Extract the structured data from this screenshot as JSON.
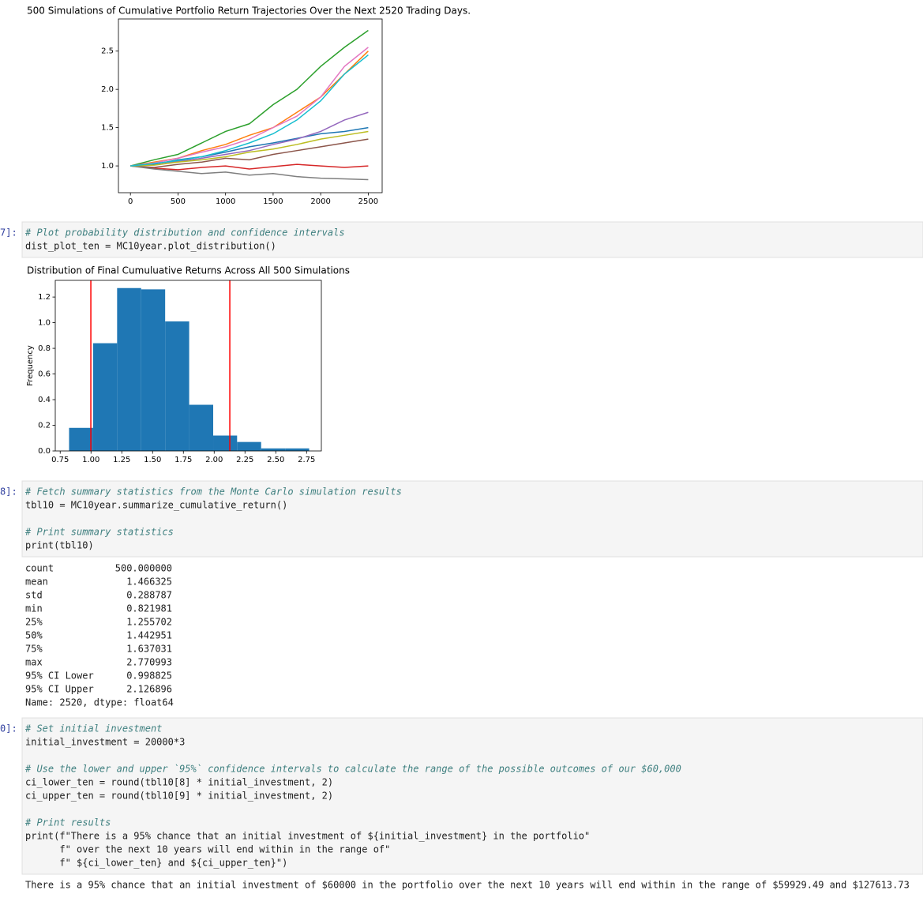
{
  "chart_data": [
    {
      "type": "line",
      "title": "500 Simulations of Cumulative Portfolio Return Trajectories Over the Next 2520 Trading Days.",
      "x": [
        0,
        250,
        500,
        750,
        1000,
        1250,
        1500,
        1750,
        2000,
        2250,
        2500
      ],
      "series": [
        {
          "color": "#1f77b4",
          "values": [
            1.0,
            1.02,
            1.08,
            1.12,
            1.18,
            1.25,
            1.3,
            1.36,
            1.42,
            1.45,
            1.5
          ]
        },
        {
          "color": "#ff7f0e",
          "values": [
            1.0,
            1.05,
            1.1,
            1.2,
            1.28,
            1.4,
            1.5,
            1.7,
            1.9,
            2.2,
            2.5
          ]
        },
        {
          "color": "#2ca02c",
          "values": [
            1.0,
            1.08,
            1.15,
            1.3,
            1.45,
            1.55,
            1.8,
            2.0,
            2.3,
            2.55,
            2.77
          ]
        },
        {
          "color": "#d62728",
          "values": [
            1.0,
            0.97,
            0.95,
            0.98,
            1.0,
            0.96,
            0.99,
            1.02,
            1.0,
            0.98,
            1.0
          ]
        },
        {
          "color": "#9467bd",
          "values": [
            1.0,
            1.03,
            1.06,
            1.1,
            1.15,
            1.2,
            1.28,
            1.35,
            1.45,
            1.6,
            1.7
          ]
        },
        {
          "color": "#8c564b",
          "values": [
            1.0,
            0.98,
            1.02,
            1.05,
            1.1,
            1.08,
            1.15,
            1.2,
            1.25,
            1.3,
            1.35
          ]
        },
        {
          "color": "#e377c2",
          "values": [
            1.0,
            1.04,
            1.1,
            1.18,
            1.25,
            1.35,
            1.5,
            1.65,
            1.9,
            2.3,
            2.55
          ]
        },
        {
          "color": "#7f7f7f",
          "values": [
            1.0,
            0.96,
            0.93,
            0.9,
            0.92,
            0.88,
            0.9,
            0.86,
            0.84,
            0.83,
            0.82
          ]
        },
        {
          "color": "#bcbd22",
          "values": [
            1.0,
            1.01,
            1.05,
            1.08,
            1.12,
            1.18,
            1.22,
            1.28,
            1.35,
            1.4,
            1.45
          ]
        },
        {
          "color": "#17becf",
          "values": [
            1.0,
            1.03,
            1.07,
            1.12,
            1.2,
            1.3,
            1.42,
            1.6,
            1.85,
            2.2,
            2.45
          ]
        }
      ],
      "xlim": [
        -126,
        2646
      ],
      "xticks": [
        0,
        500,
        1000,
        1500,
        2000,
        2500
      ],
      "ylim": [
        0.65,
        2.92
      ],
      "yticks": [
        {
          "value": 1,
          "label": "1.0"
        },
        1.5,
        {
          "value": 2,
          "label": "2.0"
        },
        2.5
      ],
      "grid": false
    },
    {
      "type": "histogram",
      "title": "Distribution of Final Cumuluative Returns Across All 500 Simulations",
      "y_label": "Frequency",
      "bins": [
        0.822,
        1.017,
        1.212,
        1.407,
        1.602,
        1.797,
        1.992,
        2.186,
        2.381,
        2.576,
        2.771
      ],
      "values": [
        0.18,
        0.84,
        1.27,
        1.26,
        1.01,
        0.36,
        0.12,
        0.07,
        0.02,
        0.02
      ],
      "color": "#1f77b4",
      "vlines": [
        0.998825,
        2.126896
      ],
      "vline_color": "#ff0000",
      "xlim": [
        0.71,
        2.87
      ],
      "xticks": [
        {
          "value": 0.75,
          "label": "0.75"
        },
        {
          "value": 1,
          "label": "1.00"
        },
        {
          "value": 1.25,
          "label": "1.25"
        },
        {
          "value": 1.5,
          "label": "1.50"
        },
        {
          "value": 1.75,
          "label": "1.75"
        },
        {
          "value": 2,
          "label": "2.00"
        },
        {
          "value": 2.25,
          "label": "2.25"
        },
        {
          "value": 2.5,
          "label": "2.50"
        },
        {
          "value": 2.75,
          "label": "2.75"
        }
      ],
      "ylim": [
        0,
        1.33
      ],
      "yticks": [
        {
          "value": 0,
          "label": "0.0"
        },
        0.2,
        0.4,
        0.6,
        0.8,
        {
          "value": 1,
          "label": "1.0"
        },
        1.2
      ],
      "grid": false
    }
  ],
  "cells": [
    {
      "prompt": "7]:",
      "blocks": [
        [
          "# Plot probability distribution and confidence intervals",
          "dist_plot_ten = MC10year.plot_distribution()"
        ]
      ]
    },
    {
      "prompt": "8]:",
      "blocks": [
        [
          "# Fetch summary statistics from the Monte Carlo simulation results",
          "tbl10 = MC10year.summarize_cumulative_return()"
        ],
        [
          "# Print summary statistics",
          "print(tbl10)"
        ]
      ]
    },
    {
      "prompt": "0]:",
      "blocks": [
        [
          "# Set initial investment",
          "initial_investment = 20000*3"
        ],
        [
          "# Use the lower and upper `95%` confidence intervals to calculate the range of the possible outcomes of our $60,000",
          "ci_lower_ten = round(tbl10[8] * initial_investment, 2)",
          "ci_upper_ten = round(tbl10[9] * initial_investment, 2)"
        ],
        [
          "# Print results",
          "print(f\"There is a 95% chance that an initial investment of ${initial_investment} in the portfolio\"",
          "      f\" over the next 10 years will end within in the range of\"",
          "      f\" ${ci_lower_ten} and ${ci_upper_ten}\")"
        ]
      ]
    }
  ],
  "stats": {
    "rows": [
      [
        "count",
        "500.000000"
      ],
      [
        "mean",
        "1.466325"
      ],
      [
        "std",
        "0.288787"
      ],
      [
        "min",
        "0.821981"
      ],
      [
        "25%",
        "1.255702"
      ],
      [
        "50%",
        "1.442951"
      ],
      [
        "75%",
        "1.637031"
      ],
      [
        "max",
        "2.770993"
      ],
      [
        "95% CI Lower",
        "0.998825"
      ],
      [
        "95% CI Upper",
        "2.126896"
      ]
    ],
    "footer": "Name: 2520, dtype: float64"
  },
  "result": "There is a 95% chance that an initial investment of $60000 in the portfolio over the next 10 years will end within in the range of $59929.49 and $127613.73"
}
